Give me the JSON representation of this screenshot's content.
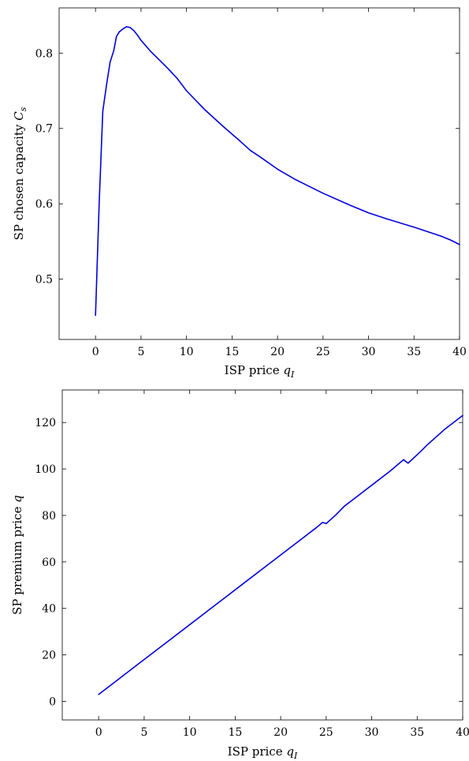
{
  "colors": {
    "series": "#0000dd",
    "axis": "#000000",
    "background": "#ffffff"
  },
  "chart_data": [
    {
      "type": "line",
      "title": "",
      "xlabel": "ISP price",
      "xlabel_symbol": "q",
      "xlabel_subscript": "I",
      "ylabel": "SP chosen capacity",
      "ylabel_symbol": "C",
      "ylabel_subscript": "s",
      "xlim": [
        -4,
        40
      ],
      "ylim": [
        0.42,
        0.86
      ],
      "xticks": [
        0,
        5,
        10,
        15,
        20,
        25,
        30,
        35,
        40
      ],
      "yticks": [
        0.5,
        0.6,
        0.7,
        0.8
      ],
      "xtick_labels": [
        "0",
        "5",
        "10",
        "15",
        "20",
        "25",
        "30",
        "35",
        "40"
      ],
      "ytick_labels": [
        "0.5",
        "0.6",
        "0.7",
        "0.8"
      ],
      "grid": false,
      "series": [
        {
          "x": [
            0,
            0.4,
            0.8,
            1.2,
            1.6,
            2.0,
            2.3,
            2.6,
            3.0,
            3.4,
            3.8,
            4.2,
            4.6,
            5.0,
            6.0,
            7.0,
            8.0,
            9.0,
            10.0,
            12.0,
            14.0,
            16.0,
            17.0,
            18.0,
            20.0,
            22.0,
            25.0,
            28.0,
            30.0,
            32.0,
            35.0,
            38.0,
            39.0,
            40.0
          ],
          "y": [
            0.452,
            0.6,
            0.723,
            0.757,
            0.788,
            0.803,
            0.822,
            0.828,
            0.832,
            0.835,
            0.834,
            0.83,
            0.824,
            0.817,
            0.803,
            0.791,
            0.779,
            0.766,
            0.75,
            0.725,
            0.703,
            0.682,
            0.671,
            0.663,
            0.646,
            0.632,
            0.614,
            0.598,
            0.588,
            0.58,
            0.569,
            0.557,
            0.552,
            0.546
          ]
        }
      ]
    },
    {
      "type": "line",
      "title": "",
      "xlabel": "ISP price",
      "xlabel_symbol": "q",
      "xlabel_subscript": "I",
      "ylabel": "SP premium price",
      "ylabel_symbol": "q",
      "ylabel_subscript": "",
      "xlim": [
        -4,
        40
      ],
      "ylim": [
        -8,
        134
      ],
      "xticks": [
        0,
        5,
        10,
        15,
        20,
        25,
        30,
        35,
        40
      ],
      "yticks": [
        0,
        20,
        40,
        60,
        80,
        100,
        120
      ],
      "xtick_labels": [
        "0",
        "5",
        "10",
        "15",
        "20",
        "25",
        "30",
        "35",
        "40"
      ],
      "ytick_labels": [
        "0",
        "20",
        "40",
        "60",
        "80",
        "100",
        "120"
      ],
      "grid": false,
      "series": [
        {
          "x": [
            0,
            2,
            4,
            6,
            8,
            10,
            12,
            14,
            16,
            18,
            20,
            22,
            24,
            24.6,
            25.0,
            26,
            27,
            28,
            30,
            32,
            33.5,
            34.0,
            35.5,
            36,
            38,
            40
          ],
          "y": [
            3,
            9,
            15,
            21,
            27,
            33,
            39,
            45,
            51,
            57,
            63,
            69,
            75,
            77,
            76.5,
            80,
            84,
            87,
            93,
            99,
            104,
            102.5,
            108,
            110,
            117,
            123
          ]
        }
      ]
    }
  ]
}
